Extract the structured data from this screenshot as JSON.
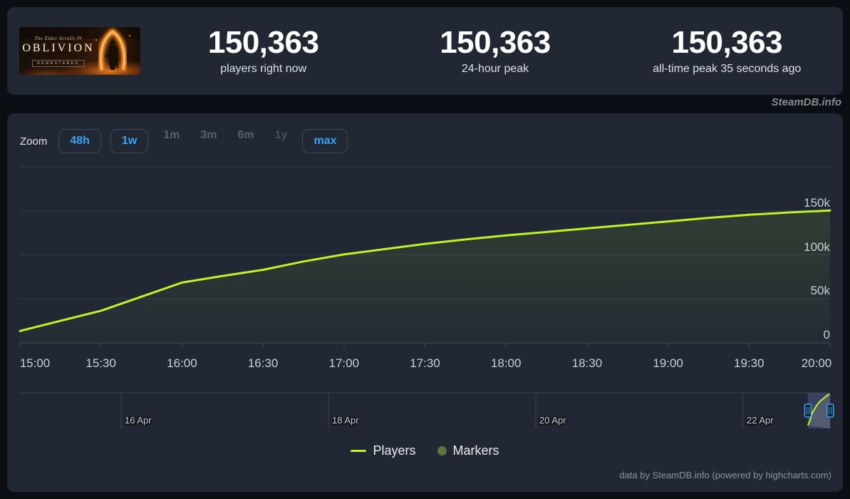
{
  "header": {
    "game": {
      "series_label": "The Elder Scrolls IV",
      "title": "OBLIVION",
      "edition_badge": "REMASTERED"
    },
    "stats": [
      {
        "value": "150,363",
        "label": "players right now"
      },
      {
        "value": "150,363",
        "label": "24-hour peak"
      },
      {
        "value": "150,363",
        "label": "all-time peak 35 seconds ago"
      }
    ]
  },
  "watermark": "SteamDB.info",
  "toolbar": {
    "zoom_label": "Zoom",
    "buttons": [
      {
        "label": "48h",
        "state": "enabled"
      },
      {
        "label": "1w",
        "state": "enabled"
      },
      {
        "label": "1m",
        "state": "disabled"
      },
      {
        "label": "3m",
        "state": "disabled"
      },
      {
        "label": "6m",
        "state": "disabled"
      },
      {
        "label": "1y",
        "state": "disabled"
      },
      {
        "label": "max",
        "state": "enabled"
      }
    ]
  },
  "chart_data": {
    "type": "line",
    "title": "",
    "xlabel": "",
    "ylabel": "",
    "grid": true,
    "legend_position": "bottom",
    "ylim": [
      0,
      200000
    ],
    "x_labels": [
      "15:00",
      "15:30",
      "16:00",
      "16:30",
      "17:00",
      "17:30",
      "18:00",
      "18:30",
      "19:00",
      "19:30",
      "20:00"
    ],
    "yticks": [
      {
        "label": "0",
        "value": 0
      },
      {
        "label": "50k",
        "value": 50000
      },
      {
        "label": "100k",
        "value": 100000
      },
      {
        "label": "150k",
        "value": 150000
      },
      {
        "label": "",
        "value": 200000
      }
    ],
    "series": [
      {
        "name": "Players",
        "color": "#bff227",
        "points": [
          {
            "t": "15:00",
            "v": 13500
          },
          {
            "t": "15:15",
            "v": 25000
          },
          {
            "t": "15:30",
            "v": 36500
          },
          {
            "t": "15:45",
            "v": 52500
          },
          {
            "t": "16:00",
            "v": 68500
          },
          {
            "t": "16:15",
            "v": 76000
          },
          {
            "t": "16:30",
            "v": 83000
          },
          {
            "t": "16:45",
            "v": 92500
          },
          {
            "t": "17:00",
            "v": 100500
          },
          {
            "t": "17:15",
            "v": 106500
          },
          {
            "t": "17:30",
            "v": 112500
          },
          {
            "t": "17:45",
            "v": 117500
          },
          {
            "t": "18:00",
            "v": 122000
          },
          {
            "t": "18:15",
            "v": 126000
          },
          {
            "t": "18:30",
            "v": 130000
          },
          {
            "t": "18:45",
            "v": 134000
          },
          {
            "t": "19:00",
            "v": 138000
          },
          {
            "t": "19:15",
            "v": 142000
          },
          {
            "t": "19:30",
            "v": 145500
          },
          {
            "t": "19:45",
            "v": 148200
          },
          {
            "t": "20:00",
            "v": 150363
          }
        ]
      },
      {
        "name": "Markers",
        "color": "#5f7340",
        "points": []
      }
    ],
    "navigator": {
      "date_labels": [
        "16 Apr",
        "18 Apr",
        "20 Apr",
        "22 Apr"
      ],
      "selected_range": "22 Apr 15:00 – 22 Apr 20:00"
    }
  },
  "legend": [
    {
      "label": "Players",
      "swatch": "line",
      "color": "#bff227"
    },
    {
      "label": "Markers",
      "swatch": "circle",
      "color": "#5f7340"
    }
  ],
  "credits": "data by SteamDB.info (powered by highcharts.com)",
  "colors": {
    "accent_blue": "#38a3f5",
    "line": "#bff227",
    "marker": "#5f7340",
    "grid": "#323a48",
    "axis": "#424b5a",
    "nav_line": "#39414f",
    "nav_mask": "#3a4263",
    "nav_under": "#535c6e",
    "panel_bg": "#212834"
  }
}
